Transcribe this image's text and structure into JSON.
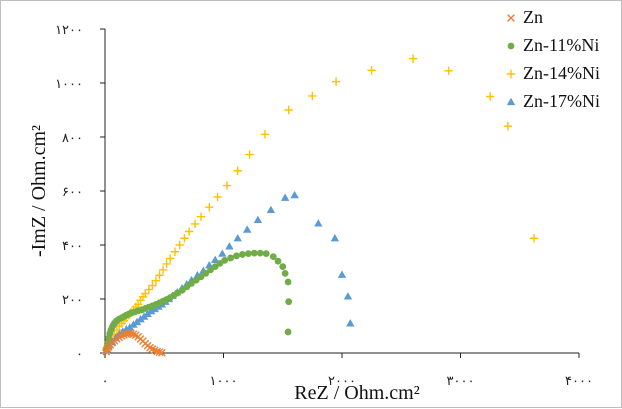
{
  "chart_data": {
    "type": "scatter",
    "xlabel": "ReZ / Ohm.cm²",
    "ylabel": "-ImZ / Ohm.cm²",
    "xlim": [
      0,
      4000
    ],
    "ylim": [
      0,
      1200
    ],
    "x_ticks": [
      {
        "value": 0,
        "label": "۰"
      },
      {
        "value": 1000,
        "label": "۱۰۰۰"
      },
      {
        "value": 2000,
        "label": "۲۰۰۰"
      },
      {
        "value": 3000,
        "label": "۳۰۰۰"
      },
      {
        "value": 4000,
        "label": "۴۰۰۰"
      }
    ],
    "y_ticks": [
      {
        "value": 0,
        "label": "۰"
      },
      {
        "value": 200,
        "label": "۲۰۰"
      },
      {
        "value": 400,
        "label": "۴۰۰"
      },
      {
        "value": 600,
        "label": "۶۰۰"
      },
      {
        "value": 800,
        "label": "۸۰۰"
      },
      {
        "value": 1000,
        "label": "۱۰۰۰"
      },
      {
        "value": 1200,
        "label": "۱۲۰۰"
      }
    ],
    "grid": false,
    "legend": "top-right",
    "series": [
      {
        "name": "Zn",
        "marker": "x",
        "color": "#ED7D31",
        "points": [
          [
            10,
            5
          ],
          [
            20,
            15
          ],
          [
            30,
            22
          ],
          [
            45,
            30
          ],
          [
            60,
            38
          ],
          [
            80,
            45
          ],
          [
            100,
            52
          ],
          [
            120,
            58
          ],
          [
            140,
            63
          ],
          [
            160,
            67
          ],
          [
            180,
            70
          ],
          [
            200,
            72
          ],
          [
            220,
            72
          ],
          [
            240,
            70
          ],
          [
            260,
            66
          ],
          [
            280,
            60
          ],
          [
            300,
            52
          ],
          [
            320,
            44
          ],
          [
            340,
            35
          ],
          [
            360,
            27
          ],
          [
            380,
            20
          ],
          [
            400,
            15
          ],
          [
            420,
            10
          ],
          [
            440,
            6
          ],
          [
            460,
            3
          ],
          [
            480,
            1
          ]
        ]
      },
      {
        "name": "Zn-11%Ni",
        "marker": "circle",
        "color": "#70AD47",
        "points": [
          [
            10,
            15
          ],
          [
            20,
            35
          ],
          [
            30,
            55
          ],
          [
            40,
            72
          ],
          [
            50,
            85
          ],
          [
            60,
            95
          ],
          [
            70,
            103
          ],
          [
            80,
            110
          ],
          [
            90,
            115
          ],
          [
            100,
            120
          ],
          [
            120,
            126
          ],
          [
            140,
            130
          ],
          [
            160,
            135
          ],
          [
            180,
            140
          ],
          [
            200,
            144
          ],
          [
            220,
            148
          ],
          [
            250,
            152
          ],
          [
            280,
            156
          ],
          [
            310,
            160
          ],
          [
            340,
            165
          ],
          [
            370,
            170
          ],
          [
            400,
            175
          ],
          [
            430,
            180
          ],
          [
            460,
            186
          ],
          [
            490,
            192
          ],
          [
            520,
            198
          ],
          [
            550,
            205
          ],
          [
            580,
            213
          ],
          [
            610,
            222
          ],
          [
            650,
            232
          ],
          [
            690,
            245
          ],
          [
            730,
            258
          ],
          [
            770,
            270
          ],
          [
            810,
            282
          ],
          [
            850,
            295
          ],
          [
            890,
            308
          ],
          [
            930,
            320
          ],
          [
            970,
            332
          ],
          [
            1010,
            343
          ],
          [
            1060,
            352
          ],
          [
            1110,
            360
          ],
          [
            1160,
            365
          ],
          [
            1210,
            368
          ],
          [
            1260,
            370
          ],
          [
            1310,
            370
          ],
          [
            1360,
            368
          ],
          [
            1420,
            357
          ],
          [
            1460,
            340
          ],
          [
            1500,
            320
          ],
          [
            1520,
            295
          ],
          [
            1545,
            263
          ],
          [
            1550,
            190
          ],
          [
            1545,
            78
          ]
        ]
      },
      {
        "name": "Zn-14%Ni",
        "marker": "plus",
        "color": "#FFC000",
        "points": [
          [
            10,
            10
          ],
          [
            25,
            25
          ],
          [
            40,
            40
          ],
          [
            60,
            55
          ],
          [
            80,
            70
          ],
          [
            100,
            85
          ],
          [
            120,
            100
          ],
          [
            140,
            110
          ],
          [
            160,
            120
          ],
          [
            180,
            130
          ],
          [
            200,
            140
          ],
          [
            220,
            150
          ],
          [
            240,
            160
          ],
          [
            260,
            170
          ],
          [
            280,
            180
          ],
          [
            300,
            195
          ],
          [
            320,
            208
          ],
          [
            340,
            220
          ],
          [
            370,
            235
          ],
          [
            400,
            250
          ],
          [
            430,
            268
          ],
          [
            460,
            288
          ],
          [
            490,
            308
          ],
          [
            520,
            330
          ],
          [
            550,
            350
          ],
          [
            590,
            375
          ],
          [
            630,
            400
          ],
          [
            670,
            425
          ],
          [
            710,
            450
          ],
          [
            760,
            478
          ],
          [
            810,
            505
          ],
          [
            880,
            540
          ],
          [
            950,
            578
          ],
          [
            1030,
            620
          ],
          [
            1120,
            675
          ],
          [
            1220,
            735
          ],
          [
            1350,
            810
          ],
          [
            1550,
            900
          ],
          [
            1750,
            952
          ],
          [
            1950,
            1005
          ],
          [
            2250,
            1047
          ],
          [
            2600,
            1090
          ],
          [
            2900,
            1045
          ],
          [
            3250,
            950
          ],
          [
            3400,
            840
          ],
          [
            3620,
            425
          ]
        ]
      },
      {
        "name": "Zn-17%Ni",
        "marker": "triangle",
        "color": "#5B9BD5",
        "points": [
          [
            10,
            10
          ],
          [
            30,
            25
          ],
          [
            60,
            40
          ],
          [
            90,
            55
          ],
          [
            120,
            70
          ],
          [
            150,
            80
          ],
          [
            180,
            88
          ],
          [
            210,
            95
          ],
          [
            240,
            105
          ],
          [
            270,
            115
          ],
          [
            300,
            125
          ],
          [
            330,
            135
          ],
          [
            360,
            145
          ],
          [
            390,
            155
          ],
          [
            420,
            163
          ],
          [
            450,
            172
          ],
          [
            480,
            180
          ],
          [
            510,
            190
          ],
          [
            540,
            200
          ],
          [
            570,
            212
          ],
          [
            610,
            225
          ],
          [
            650,
            240
          ],
          [
            690,
            255
          ],
          [
            730,
            270
          ],
          [
            780,
            288
          ],
          [
            830,
            305
          ],
          [
            880,
            325
          ],
          [
            930,
            345
          ],
          [
            990,
            368
          ],
          [
            1050,
            395
          ],
          [
            1120,
            425
          ],
          [
            1200,
            457
          ],
          [
            1290,
            493
          ],
          [
            1400,
            530
          ],
          [
            1520,
            575
          ],
          [
            1600,
            585
          ],
          [
            1800,
            480
          ],
          [
            1940,
            425
          ],
          [
            2000,
            290
          ],
          [
            2050,
            210
          ],
          [
            2070,
            110
          ]
        ]
      }
    ]
  }
}
